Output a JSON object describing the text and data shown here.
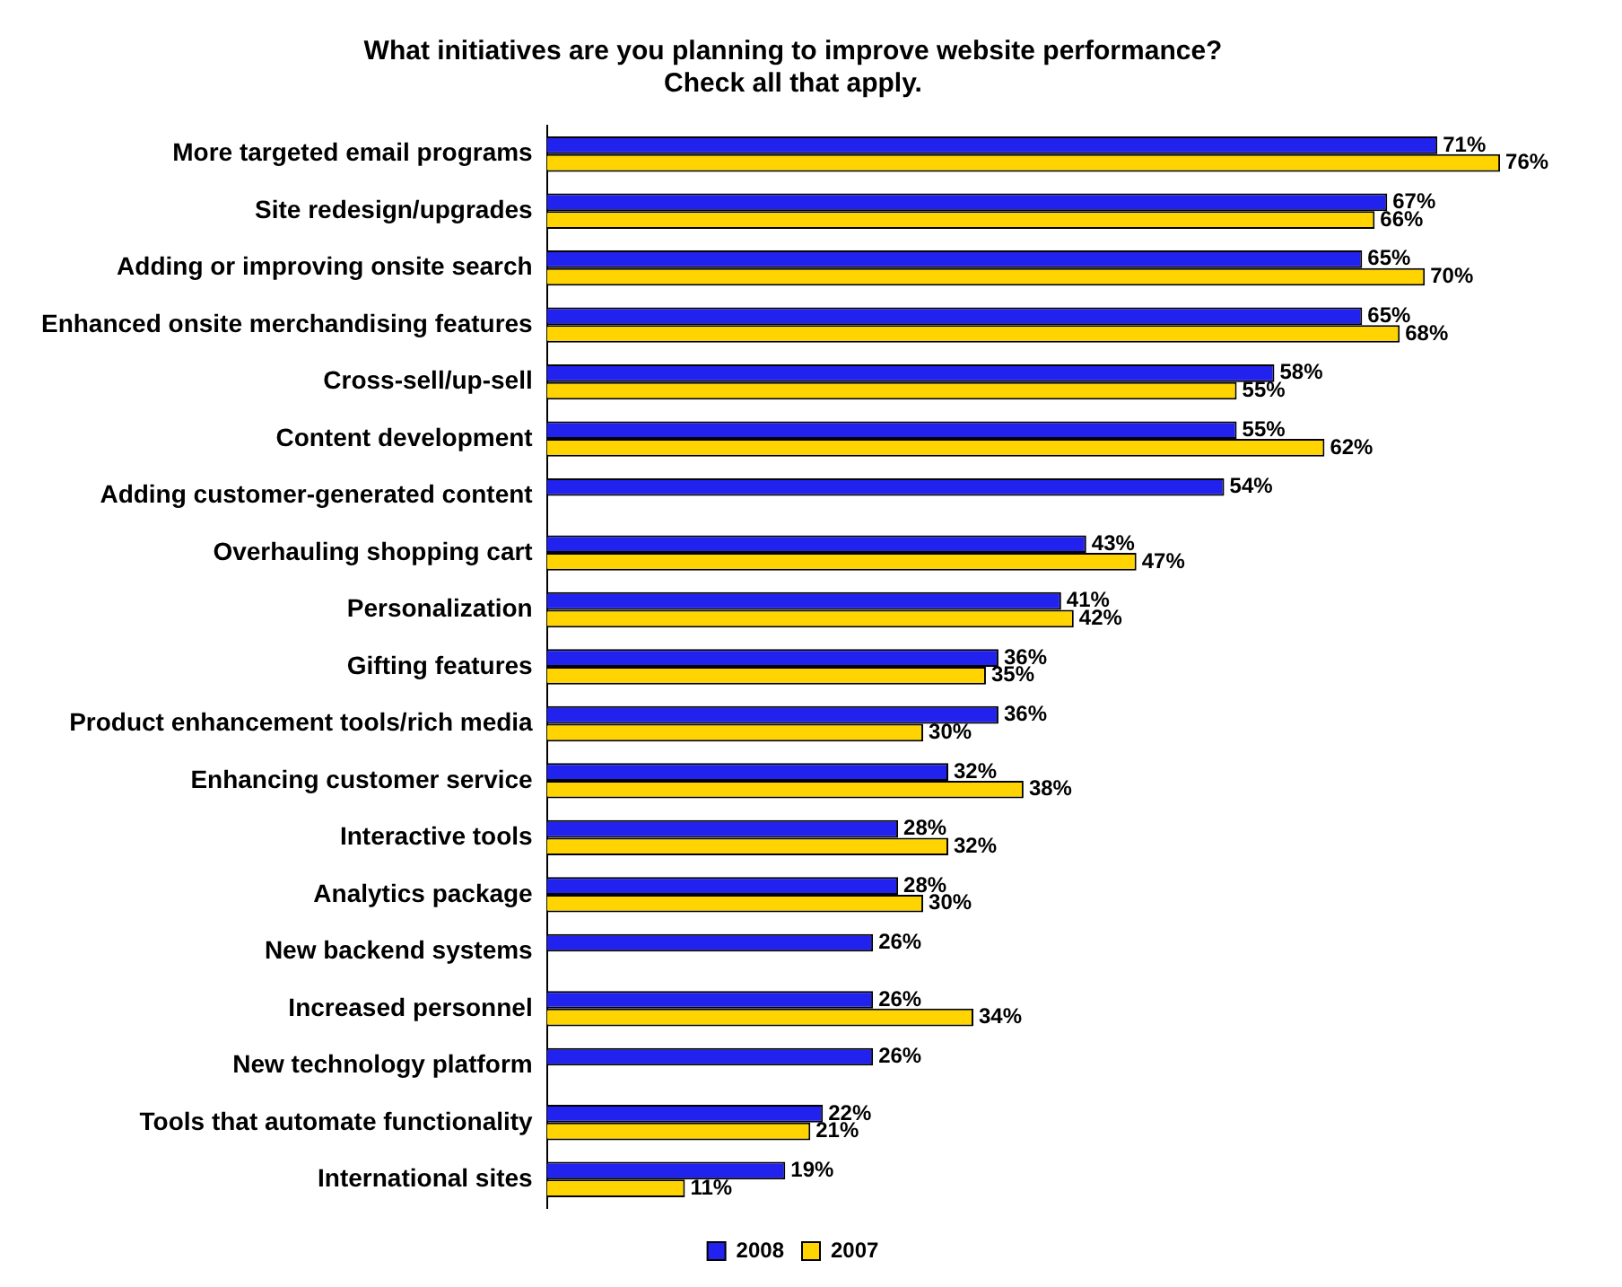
{
  "chart_data": {
    "type": "bar",
    "orientation": "horizontal",
    "title": "What initiatives are you planning to improve website performance?\nCheck all that apply.",
    "categories": [
      "More targeted email programs",
      "Site redesign/upgrades",
      "Adding or improving onsite search",
      "Enhanced onsite merchandising features",
      "Cross-sell/up-sell",
      "Content development",
      "Adding customer-generated content",
      "Overhauling shopping cart",
      "Personalization",
      "Gifting features",
      "Product enhancement tools/rich media",
      "Enhancing customer service",
      "Interactive tools",
      "Analytics package",
      "New backend systems",
      "Increased personnel",
      "New technology platform",
      "Tools that automate functionality",
      "International sites"
    ],
    "series": [
      {
        "name": "2008",
        "color": "#2222ee",
        "values": [
          71,
          67,
          65,
          65,
          58,
          55,
          54,
          43,
          41,
          36,
          36,
          32,
          28,
          28,
          26,
          26,
          26,
          22,
          19
        ],
        "value_labels": [
          "71%",
          "67%",
          "65%",
          "65%",
          "58%",
          "55%",
          "54%",
          "43%",
          "41%",
          "36%",
          "36%",
          "32%",
          "28%",
          "28%",
          "26%",
          "26%",
          "26%",
          "22%",
          "19%"
        ]
      },
      {
        "name": "2007",
        "color": "#ffd400",
        "values": [
          76,
          66,
          70,
          68,
          55,
          62,
          null,
          47,
          42,
          35,
          30,
          38,
          32,
          30,
          null,
          34,
          null,
          21,
          11
        ],
        "value_labels": [
          "76%",
          "66%",
          "70%",
          "68%",
          "55%",
          "62%",
          null,
          "47%",
          "42%",
          "35%",
          "30%",
          "38%",
          "32%",
          "30%",
          null,
          "34%",
          null,
          "21%",
          "11%"
        ]
      }
    ],
    "grid": false,
    "legend": "bottom"
  }
}
